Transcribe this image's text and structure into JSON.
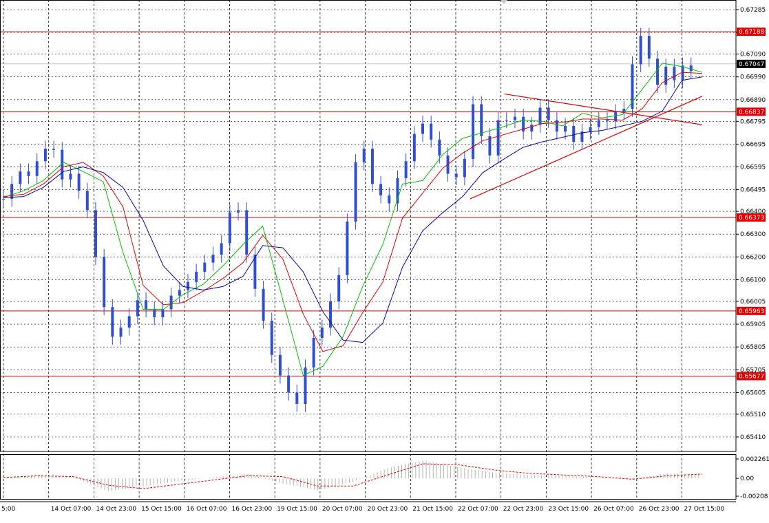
{
  "chart_data": [
    {
      "type": "line",
      "subtype": "candlestick-with-moving-averages",
      "x_tick_labels": [
        "5:00",
        "14 Oct 07:00",
        "14 Oct 23:00",
        "15 Oct 15:00",
        "16 Oct 07:00",
        "16 Oct 23:00",
        "19 Oct 15:00",
        "20 Oct 07:00",
        "20 Oct 23:00",
        "21 Oct 15:00",
        "22 Oct 07:00",
        "22 Oct 23:00",
        "23 Oct 15:00",
        "26 Oct 07:00",
        "26 Oct 23:00",
        "27 Oct 15:00"
      ],
      "y_tick_labels": [
        "0.67285",
        "0.67185",
        "0.67090",
        "0.66990",
        "0.66890",
        "0.66795",
        "0.66695",
        "0.66595",
        "0.66495",
        "0.66400",
        "0.66300",
        "0.66200",
        "0.66100",
        "0.66005",
        "0.65905",
        "0.65805",
        "0.65705",
        "0.65605",
        "0.65510",
        "0.65410"
      ],
      "ylim": [
        0.6541,
        0.67285
      ],
      "grid": true,
      "grid_style": "dashed",
      "colors": {
        "candles": "#2f4fd0",
        "ma_fast": "#00c000",
        "ma_mid": "#e00000",
        "ma_slow": "#0000b0",
        "levels": "#e00000",
        "trendlines": "#e00000"
      },
      "price_levels": [
        {
          "label": "0.67188",
          "value": 0.67188
        },
        {
          "label": "0.66837",
          "value": 0.66837
        },
        {
          "label": "0.66373",
          "value": 0.66373
        },
        {
          "label": "0.65963",
          "value": 0.65963
        },
        {
          "label": "0.65677",
          "value": 0.65677
        }
      ],
      "current_price": {
        "label": "0.67047",
        "value": 0.67047
      },
      "trendlines": [
        {
          "from": [
            0.717,
            0.66915
          ],
          "to": [
            1.0,
            0.6678
          ]
        },
        {
          "from": [
            0.668,
            0.66455
          ],
          "to": [
            1.0,
            0.66905
          ]
        }
      ],
      "series": [
        {
          "kind": "candles",
          "x": [
            0,
            0.012,
            0.024,
            0.036,
            0.048,
            0.06,
            0.072,
            0.084,
            0.096,
            0.108,
            0.12,
            0.132,
            0.144,
            0.156,
            0.168,
            0.18,
            0.192,
            0.204,
            0.216,
            0.228,
            0.24,
            0.252,
            0.264,
            0.276,
            0.288,
            0.3,
            0.312,
            0.324,
            0.336,
            0.348,
            0.36,
            0.372,
            0.384,
            0.396,
            0.408,
            0.42,
            0.432,
            0.444,
            0.456,
            0.468,
            0.48,
            0.492,
            0.504,
            0.516,
            0.528,
            0.54,
            0.552,
            0.564,
            0.576,
            0.588,
            0.6,
            0.612,
            0.624,
            0.636,
            0.648,
            0.66,
            0.672,
            0.684,
            0.696,
            0.708,
            0.72,
            0.732,
            0.744,
            0.756,
            0.768,
            0.78,
            0.792,
            0.804,
            0.816,
            0.828,
            0.84,
            0.852,
            0.864,
            0.876,
            0.888,
            0.9,
            0.912,
            0.924,
            0.936,
            0.948,
            0.96,
            0.972,
            0.984
          ],
          "close": [
            0.66455,
            0.6652,
            0.66575,
            0.66555,
            0.6662,
            0.66675,
            0.6667,
            0.6654,
            0.66565,
            0.6649,
            0.66405,
            0.662,
            0.6598,
            0.6585,
            0.6589,
            0.6594,
            0.6601,
            0.6597,
            0.65935,
            0.6597,
            0.6603,
            0.66055,
            0.6609,
            0.66135,
            0.66175,
            0.6621,
            0.6626,
            0.66395,
            0.66405,
            0.6621,
            0.6606,
            0.6592,
            0.6577,
            0.6568,
            0.65605,
            0.65555,
            0.65715,
            0.65845,
            0.6589,
            0.66005,
            0.6612,
            0.66355,
            0.66615,
            0.66675,
            0.6652,
            0.6647,
            0.66435,
            0.66545,
            0.6662,
            0.6674,
            0.66785,
            0.66715,
            0.66645,
            0.66565,
            0.6655,
            0.6663,
            0.6687,
            0.6673,
            0.66645,
            0.668,
            0.668,
            0.66815,
            0.6675,
            0.6678,
            0.66855,
            0.668,
            0.6675,
            0.66775,
            0.66705,
            0.6675,
            0.6677,
            0.668,
            0.66795,
            0.66835,
            0.6685,
            0.67045,
            0.6717,
            0.6707,
            0.66955,
            0.67035,
            0.66975,
            0.6704,
            0.67015
          ]
        },
        {
          "kind": "ma_fast",
          "x": [
            0,
            0.029,
            0.057,
            0.086,
            0.114,
            0.143,
            0.171,
            0.2,
            0.229,
            0.257,
            0.286,
            0.314,
            0.343,
            0.371,
            0.4,
            0.429,
            0.457,
            0.486,
            0.514,
            0.543,
            0.571,
            0.6,
            0.629,
            0.657,
            0.686,
            0.714,
            0.743,
            0.771,
            0.8,
            0.829,
            0.857,
            0.886,
            0.914,
            0.943,
            0.971,
            1.0
          ],
          "y": [
            0.6646,
            0.6649,
            0.66535,
            0.66615,
            0.66575,
            0.6653,
            0.6622,
            0.6597,
            0.6597,
            0.66035,
            0.6608,
            0.6616,
            0.66255,
            0.66335,
            0.6601,
            0.6568,
            0.6572,
            0.6585,
            0.6607,
            0.66255,
            0.6652,
            0.66535,
            0.6665,
            0.6672,
            0.66745,
            0.6677,
            0.668,
            0.66795,
            0.66775,
            0.6683,
            0.6681,
            0.66825,
            0.66935,
            0.6705,
            0.67035,
            0.6701
          ]
        },
        {
          "kind": "ma_mid",
          "x": [
            0,
            0.029,
            0.057,
            0.086,
            0.114,
            0.143,
            0.171,
            0.2,
            0.229,
            0.257,
            0.286,
            0.314,
            0.343,
            0.371,
            0.4,
            0.429,
            0.457,
            0.486,
            0.514,
            0.543,
            0.571,
            0.6,
            0.629,
            0.657,
            0.686,
            0.714,
            0.743,
            0.771,
            0.8,
            0.829,
            0.857,
            0.886,
            0.914,
            0.943,
            0.971,
            1.0
          ],
          "y": [
            0.66465,
            0.66475,
            0.6652,
            0.66595,
            0.66615,
            0.66555,
            0.6642,
            0.66075,
            0.6599,
            0.66,
            0.6605,
            0.66105,
            0.66175,
            0.66295,
            0.6619,
            0.6595,
            0.65785,
            0.6581,
            0.65955,
            0.6609,
            0.6637,
            0.6648,
            0.6659,
            0.66655,
            0.6671,
            0.66735,
            0.6676,
            0.66785,
            0.6679,
            0.66805,
            0.66805,
            0.668,
            0.6685,
            0.66965,
            0.6701,
            0.67005
          ]
        },
        {
          "kind": "ma_slow",
          "x": [
            0,
            0.029,
            0.057,
            0.086,
            0.114,
            0.143,
            0.171,
            0.2,
            0.229,
            0.257,
            0.286,
            0.314,
            0.343,
            0.371,
            0.4,
            0.429,
            0.457,
            0.486,
            0.514,
            0.543,
            0.571,
            0.6,
            0.629,
            0.657,
            0.686,
            0.714,
            0.743,
            0.771,
            0.8,
            0.829,
            0.857,
            0.886,
            0.914,
            0.943,
            0.971,
            1.0
          ],
          "y": [
            0.6646,
            0.66465,
            0.66505,
            0.66575,
            0.66595,
            0.6657,
            0.66505,
            0.6636,
            0.6616,
            0.6607,
            0.66055,
            0.6607,
            0.66115,
            0.6625,
            0.6624,
            0.66135,
            0.6596,
            0.65835,
            0.65825,
            0.6591,
            0.66155,
            0.66315,
            0.66395,
            0.66465,
            0.6657,
            0.66625,
            0.6668,
            0.66705,
            0.66725,
            0.66745,
            0.66755,
            0.66775,
            0.66795,
            0.6684,
            0.66975,
            0.6699
          ]
        }
      ]
    },
    {
      "type": "bar",
      "subtype": "oscillator-histogram",
      "y_tick_labels": [
        "0.002261",
        "0.00",
        "-0.00208"
      ],
      "ylim": [
        -0.00208,
        0.002261
      ],
      "colors": {
        "bars": "#b0b0b0",
        "signal": "#e00000"
      },
      "series": [
        {
          "kind": "histogram",
          "x": [
            0,
            0.05,
            0.1,
            0.15,
            0.2,
            0.25,
            0.3,
            0.35,
            0.4,
            0.45,
            0.5,
            0.55,
            0.6,
            0.65,
            0.7,
            0.75,
            0.8,
            0.85,
            0.9,
            0.95,
            1.0
          ],
          "y": [
            0.0001,
            0.0003,
            0.0001,
            -0.0015,
            -0.0009,
            -0.0003,
            0.0001,
            0.0005,
            -0.0006,
            -0.0014,
            -0.0004,
            0.0012,
            0.0021,
            0.0013,
            0.0007,
            0.0004,
            0.0003,
            0.0001,
            -0.0001,
            0.0006,
            0.0005
          ]
        },
        {
          "kind": "signal",
          "x": [
            0,
            0.05,
            0.1,
            0.15,
            0.2,
            0.25,
            0.3,
            0.35,
            0.4,
            0.45,
            0.5,
            0.55,
            0.6,
            0.65,
            0.7,
            0.75,
            0.8,
            0.85,
            0.9,
            0.95,
            1.0
          ],
          "y": [
            0.0001,
            0.0003,
            0.0002,
            -0.0008,
            -0.0012,
            -0.0007,
            -0.0002,
            0.0003,
            0.0002,
            -0.0009,
            -0.0009,
            0.0004,
            0.0017,
            0.0016,
            0.001,
            0.0006,
            0.0004,
            0.0002,
            -0.0001,
            0.0003,
            0.0005
          ]
        }
      ]
    }
  ]
}
